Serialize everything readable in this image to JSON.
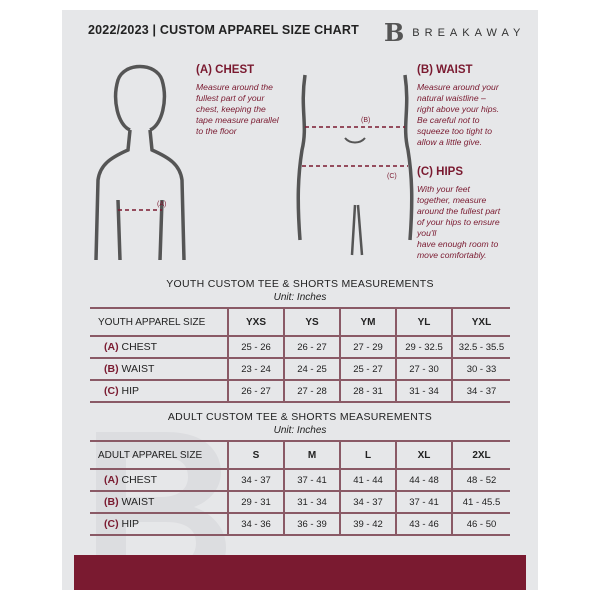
{
  "header": {
    "title": "2022/2023 | CUSTOM APPAREL SIZE CHART",
    "brand": "BREAKAWAY",
    "logo_mark": "B"
  },
  "measures": {
    "chest": {
      "title": "(A) CHEST",
      "text": [
        "Measure around the",
        "fullest part of your",
        "chest, keeping the",
        "tape measure parallel",
        "to the floor"
      ],
      "marker": "(A)"
    },
    "waist": {
      "title": "(B) WAIST",
      "text": [
        "Measure around your",
        "natural waistline –",
        "right above your hips.",
        "Be careful not to",
        "squeeze too tight to",
        "allow a little give."
      ],
      "marker": "(B)"
    },
    "hips": {
      "title": "(C) HIPS",
      "text": [
        "With your feet",
        "together, measure",
        "around the fullest part",
        "of your hips to ensure",
        "you'll",
        "have enough room to",
        "move comfortably."
      ],
      "marker": "(C)"
    }
  },
  "youth": {
    "title": "YOUTH CUSTOM TEE & SHORTS MEASUREMENTS",
    "unit": "Unit: Inches",
    "header": [
      "YOUTH APPAREL SIZE",
      "YXS",
      "YS",
      "YM",
      "YL",
      "YXL"
    ],
    "rows": [
      {
        "code": "(A)",
        "label": "CHEST",
        "values": [
          "25 - 26",
          "26 - 27",
          "27 - 29",
          "29 - 32.5",
          "32.5 - 35.5"
        ]
      },
      {
        "code": "(B)",
        "label": "WAIST",
        "values": [
          "23 - 24",
          "24 - 25",
          "25 - 27",
          "27 - 30",
          "30 - 33"
        ]
      },
      {
        "code": "(C)",
        "label": "HIP",
        "values": [
          "26 - 27",
          "27 - 28",
          "28 - 31",
          "31 - 34",
          "34 - 37"
        ]
      }
    ]
  },
  "adult": {
    "title": "ADULT CUSTOM TEE & SHORTS MEASUREMENTS",
    "unit": "Unit: Inches",
    "header": [
      "ADULT APPAREL SIZE",
      "S",
      "M",
      "L",
      "XL",
      "2XL"
    ],
    "rows": [
      {
        "code": "(A)",
        "label": "CHEST",
        "values": [
          "34 - 37",
          "37 - 41",
          "41 - 44",
          "44 - 48",
          "48 - 52"
        ]
      },
      {
        "code": "(B)",
        "label": "WAIST",
        "values": [
          "29 - 31",
          "31 - 34",
          "34 - 37",
          "37 - 41",
          "41 - 45.5"
        ]
      },
      {
        "code": "(C)",
        "label": "HIP",
        "values": [
          "34 - 36",
          "36 - 39",
          "39 - 42",
          "43 - 46",
          "46 - 50"
        ]
      }
    ]
  },
  "colors": {
    "accent": "#7a1a30",
    "background": "#e6e7e9"
  }
}
